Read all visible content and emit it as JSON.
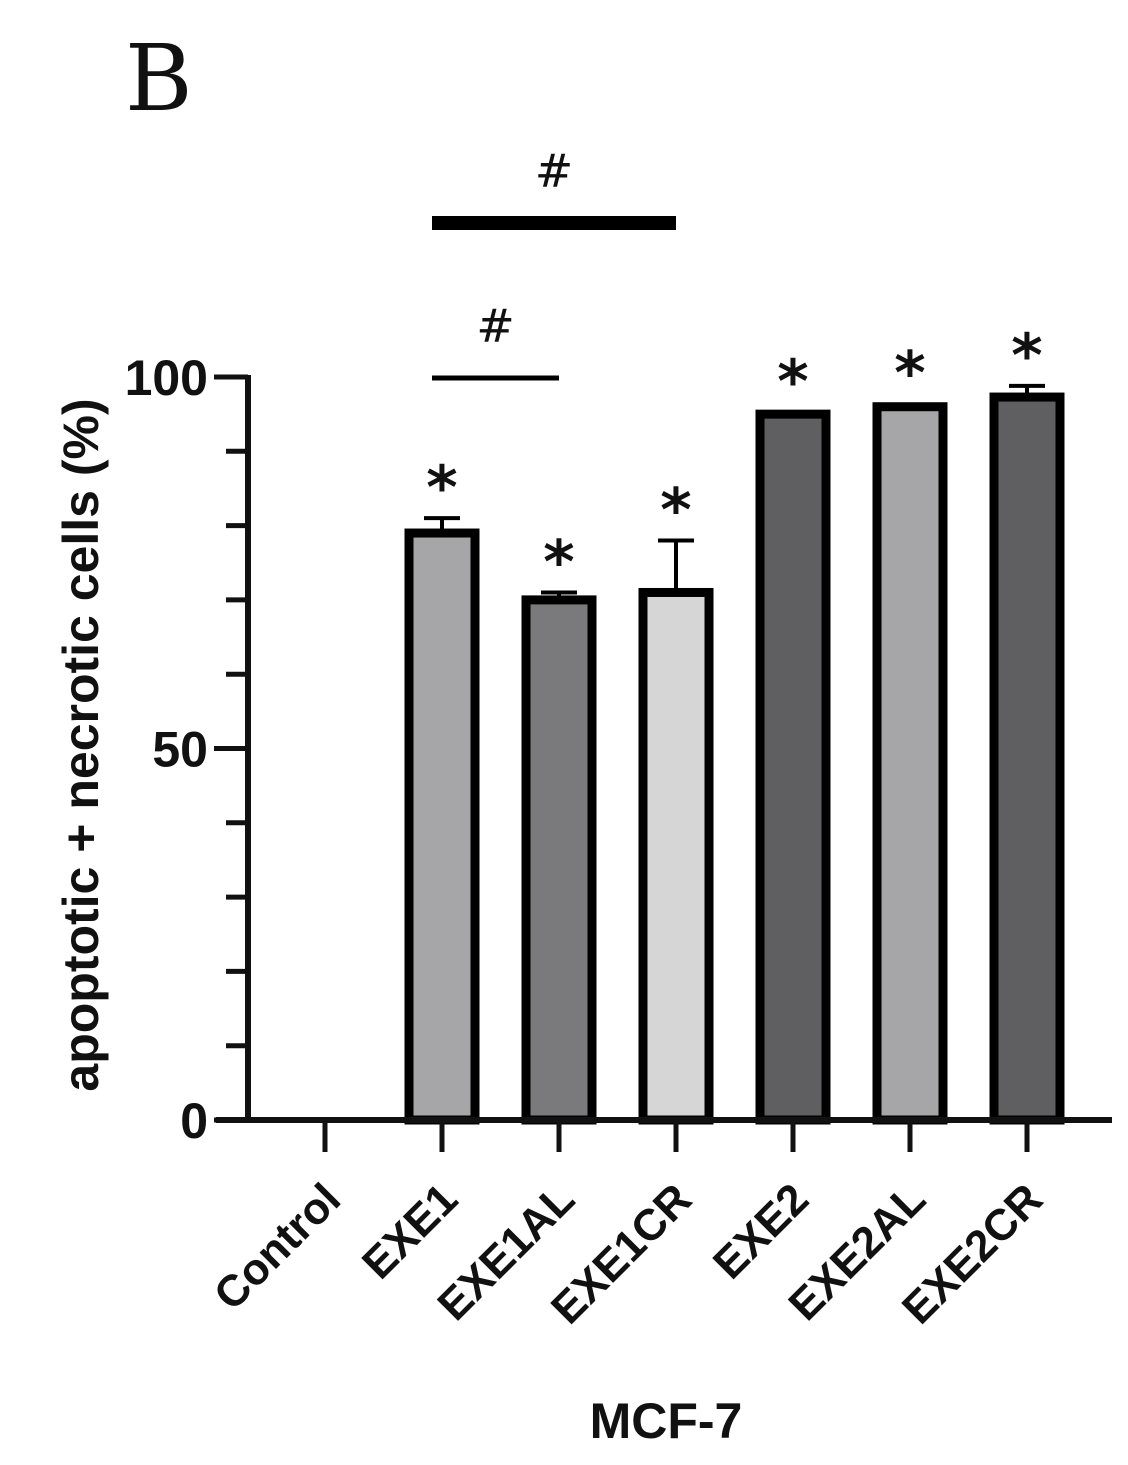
{
  "panel_label": "B",
  "chart_data": {
    "type": "bar",
    "categories": [
      "Control",
      "EXE1",
      "EXE1AL",
      "EXE1CR",
      "EXE2",
      "EXE2AL",
      "EXE2CR"
    ],
    "values": [
      0,
      79,
      70,
      71,
      95,
      96,
      97.3
    ],
    "errors": [
      0,
      2,
      1,
      7,
      0.3,
      0.4,
      1.5
    ],
    "fills": [
      "#ffffff",
      "#a6a6a8",
      "#7a7a7d",
      "#d6d6d6",
      "#5f5f62",
      "#a6a6a8",
      "#5f5f62"
    ],
    "significance_markers": [
      "",
      "*",
      "*",
      "*",
      "*",
      "*",
      "*"
    ],
    "comparison_brackets": [
      {
        "from": "EXE1",
        "to": "EXE1AL",
        "label": "#"
      },
      {
        "from": "EXE1",
        "to": "EXE1CR",
        "label": "#"
      }
    ],
    "ylabel": "apoptotic + necrotic cells (%)",
    "xlabel": "MCF-7",
    "ylim": [
      0,
      100
    ],
    "yticks_labeled": [
      0,
      50,
      100
    ],
    "yticks_minor_step": 10,
    "grid": false
  }
}
